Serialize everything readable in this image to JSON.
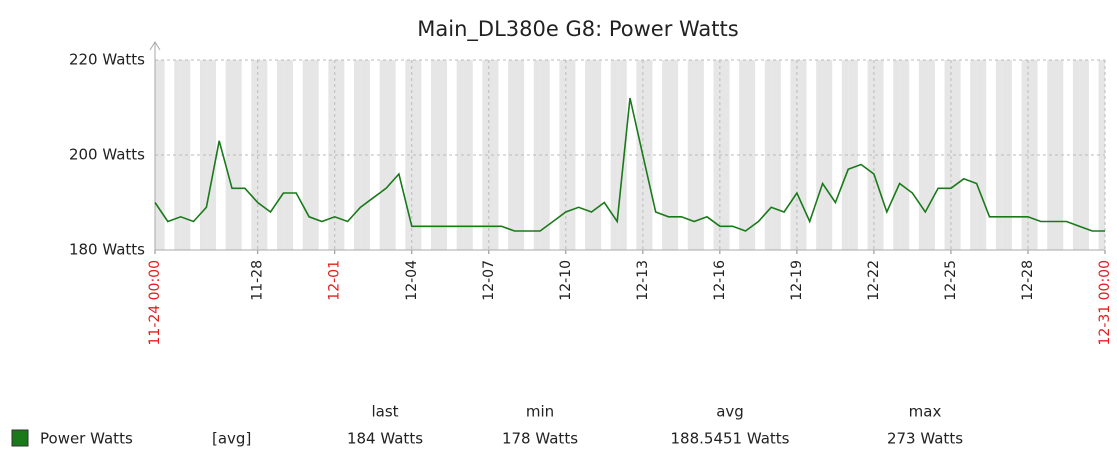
{
  "chart_data": {
    "type": "line",
    "title": "Main_DL380e G8: Power Watts",
    "x": [
      "11-24 00:00",
      "11-24 12:00",
      "11-25 00:00",
      "11-25 12:00",
      "11-26 00:00",
      "11-26 12:00",
      "11-27 00:00",
      "11-27 12:00",
      "11-28 00:00",
      "11-28 12:00",
      "11-29 00:00",
      "11-29 12:00",
      "11-30 00:00",
      "11-30 12:00",
      "12-01 00:00",
      "12-01 12:00",
      "12-02 00:00",
      "12-02 12:00",
      "12-03 00:00",
      "12-03 12:00",
      "12-04 00:00",
      "12-04 12:00",
      "12-05 00:00",
      "12-05 12:00",
      "12-06 00:00",
      "12-06 12:00",
      "12-07 00:00",
      "12-07 12:00",
      "12-08 00:00",
      "12-08 12:00",
      "12-09 00:00",
      "12-09 12:00",
      "12-10 00:00",
      "12-10 12:00",
      "12-11 00:00",
      "12-11 12:00",
      "12-12 00:00",
      "12-12 12:00",
      "12-13 00:00",
      "12-13 12:00",
      "12-14 00:00",
      "12-14 12:00",
      "12-15 00:00",
      "12-15 12:00",
      "12-16 00:00",
      "12-16 12:00",
      "12-17 00:00",
      "12-17 12:00",
      "12-18 00:00",
      "12-18 12:00",
      "12-19 00:00",
      "12-19 12:00",
      "12-20 00:00",
      "12-20 12:00",
      "12-21 00:00",
      "12-21 12:00",
      "12-22 00:00",
      "12-22 12:00",
      "12-23 00:00",
      "12-23 12:00",
      "12-24 00:00",
      "12-24 12:00",
      "12-25 00:00",
      "12-25 12:00",
      "12-26 00:00",
      "12-26 12:00",
      "12-27 00:00",
      "12-27 12:00",
      "12-28 00:00",
      "12-28 12:00",
      "12-29 00:00",
      "12-29 12:00",
      "12-30 00:00",
      "12-30 12:00",
      "12-31 00:00"
    ],
    "series": [
      {
        "name": "Power Watts",
        "color": "#1a7a1a",
        "values": [
          190,
          186,
          187,
          186,
          189,
          203,
          193,
          193,
          190,
          188,
          192,
          192,
          187,
          186,
          187,
          186,
          189,
          191,
          193,
          196,
          185,
          185,
          185,
          185,
          185,
          185,
          185,
          185,
          184,
          184,
          184,
          186,
          188,
          189,
          188,
          190,
          186,
          212,
          200,
          188,
          187,
          187,
          186,
          187,
          185,
          185,
          184,
          186,
          189,
          188,
          192,
          186,
          194,
          190,
          197,
          198,
          196,
          188,
          194,
          192,
          188,
          193,
          193,
          195,
          194,
          187,
          187,
          187,
          187,
          186,
          186,
          186,
          185,
          184,
          184
        ]
      }
    ],
    "xlim": [
      "11-24 00:00",
      "12-31 00:00"
    ],
    "xticks": [
      {
        "value": "11-24 00:00",
        "label": "11-24 00:00",
        "highlight": true
      },
      {
        "value": "11-28 00:00",
        "label": "11-28"
      },
      {
        "value": "12-01 00:00",
        "label": "12-01",
        "highlight": true
      },
      {
        "value": "12-04 00:00",
        "label": "12-04"
      },
      {
        "value": "12-07 00:00",
        "label": "12-07"
      },
      {
        "value": "12-10 00:00",
        "label": "12-10"
      },
      {
        "value": "12-13 00:00",
        "label": "12-13"
      },
      {
        "value": "12-16 00:00",
        "label": "12-16"
      },
      {
        "value": "12-19 00:00",
        "label": "12-19"
      },
      {
        "value": "12-22 00:00",
        "label": "12-22"
      },
      {
        "value": "12-25 00:00",
        "label": "12-25"
      },
      {
        "value": "12-28 00:00",
        "label": "12-28"
      },
      {
        "value": "12-31 00:00",
        "label": "12-31 00:00",
        "highlight": true
      }
    ],
    "highlight_color": "#e02020",
    "ylim": [
      180,
      220
    ],
    "yticks": [
      {
        "value": 180,
        "label": "180 Watts"
      },
      {
        "value": 200,
        "label": "200 Watts"
      },
      {
        "value": 220,
        "label": "220 Watts"
      }
    ],
    "grid": true,
    "legend": {
      "function": "[avg]",
      "columns": [
        {
          "header": "last",
          "value": "184 Watts"
        },
        {
          "header": "min",
          "value": "178 Watts"
        },
        {
          "header": "avg",
          "value": "188.5451 Watts"
        },
        {
          "header": "max",
          "value": "273 Watts"
        }
      ]
    }
  }
}
